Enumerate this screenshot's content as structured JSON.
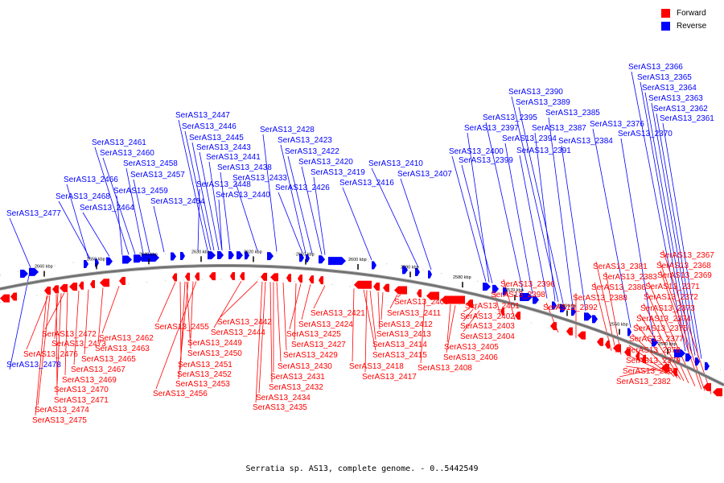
{
  "legend": {
    "forward_label": "Forward",
    "reverse_label": "Reverse",
    "forward_color": "#ff0000",
    "reverse_color": "#0000ff"
  },
  "caption": "Serratia sp. AS13, complete genome. - 0..5442549",
  "axis_ticks": [
    "2660 kbp",
    "2650 kbp",
    "2640 kbp",
    "2630 kbp",
    "2620 kbp",
    "2610 kbp",
    "2600 kbp",
    "2590 kbp",
    "2580 kbp",
    "2570 kbp",
    "2560 kbp",
    "2550 kbp",
    "2540 kbp"
  ],
  "reverse_labels": [
    "SerAS13_2366",
    "SerAS13_2365",
    "SerAS13_2364",
    "SerAS13_2363",
    "SerAS13_2362",
    "SerAS13_2361",
    "SerAS13_2390",
    "SerAS13_2389",
    "SerAS13_2385",
    "SerAS13_2395",
    "SerAS13_2387",
    "SerAS13_2397",
    "SerAS13_2376",
    "SerAS13_2394",
    "SerAS13_2370",
    "SerAS13_2384",
    "SerAS13_2391",
    "SerAS13_2400",
    "SerAS13_2399",
    "SerAS13_2447",
    "SerAS13_2446",
    "SerAS13_2428",
    "SerAS13_2445",
    "SerAS13_2423",
    "SerAS13_2443",
    "SerAS13_2422",
    "SerAS13_2461",
    "SerAS13_2441",
    "SerAS13_2420",
    "SerAS13_2410",
    "SerAS13_2460",
    "SerAS13_2458",
    "SerAS13_2438",
    "SerAS13_2419",
    "SerAS13_2407",
    "SerAS13_2457",
    "SerAS13_2433",
    "SerAS13_2466",
    "SerAS13_2448",
    "SerAS13_2416",
    "SerAS13_2426",
    "SerAS13_2459",
    "SerAS13_2440",
    "SerAS13_2468",
    "SerAS13_2454",
    "SerAS13_2464",
    "SerAS13_2477",
    "SerAS13_2478"
  ],
  "forward_labels": [
    "SerAS13_2367",
    "SerAS13_2368",
    "SerAS13_2381",
    "SerAS13_2383",
    "SerAS13_2369",
    "SerAS13_2386",
    "SerAS13_2371",
    "SerAS13_2396",
    "SerAS13_2388",
    "SerAS13_2372",
    "SerAS13_2398",
    "SerAS13_2392",
    "SerAS13_2373",
    "SerAS13_2401",
    "SerAS13_2374",
    "SerAS13_2409",
    "SerAS13_2421",
    "SerAS13_2402",
    "SerAS13_2411",
    "SerAS13_2375",
    "SerAS13_2442",
    "SerAS13_2455",
    "SerAS13_2424",
    "SerAS13_2412",
    "SerAS13_2403",
    "SerAS13_2444",
    "SerAS13_2425",
    "SerAS13_2413",
    "SerAS13_2404",
    "SerAS13_2377",
    "SerAS13_2472",
    "SerAS13_2462",
    "SerAS13_2449",
    "SerAS13_2427",
    "SerAS13_2414",
    "SerAS13_2405",
    "SerAS13_2378",
    "SerAS13_2473",
    "SerAS13_2463",
    "SerAS13_2450",
    "SerAS13_2429",
    "SerAS13_2415",
    "SerAS13_2406",
    "SerAS13_2379",
    "SerAS13_2476",
    "SerAS13_2465",
    "SerAS13_2451",
    "SerAS13_2430",
    "SerAS13_2418",
    "SerAS13_2408",
    "SerAS13_2380",
    "SerAS13_2467",
    "SerAS13_2452",
    "SerAS13_2431",
    "SerAS13_2417",
    "SerAS13_2382",
    "SerAS13_2469",
    "SerAS13_2453",
    "SerAS13_2432",
    "SerAS13_2470",
    "SerAS13_2456",
    "SerAS13_2434",
    "SerAS13_2471",
    "SerAS13_2435",
    "SerAS13_2474",
    "SerAS13_2475"
  ]
}
